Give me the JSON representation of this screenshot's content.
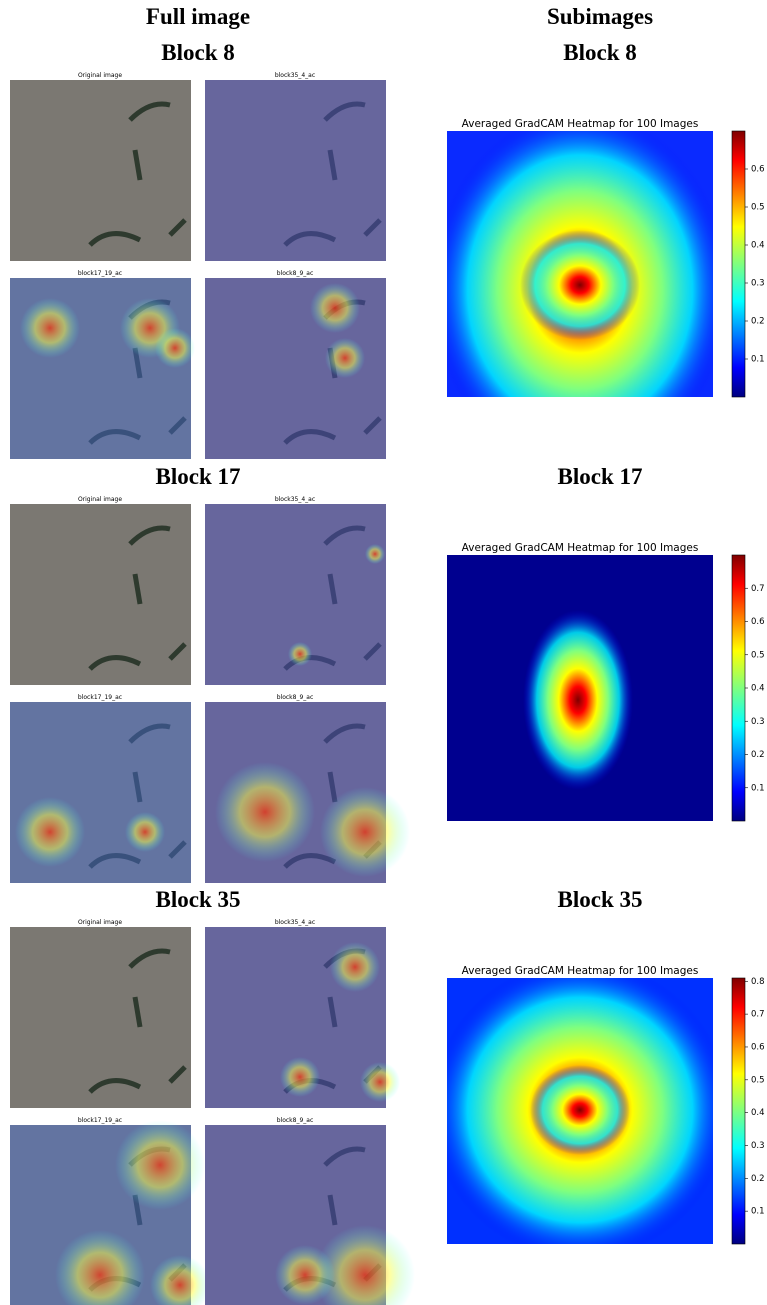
{
  "columns": [
    "Full image",
    "Subimages"
  ],
  "blocks": [
    {
      "title": "Block 8",
      "panels": [
        "Original image",
        "block35_4_ac",
        "block17_19_ac",
        "block8_9_ac"
      ],
      "heatmap": {
        "title": "Averaged GradCAM Heatmap for 100 Images",
        "clim": [
          0,
          0.7
        ],
        "ticks": [
          0.1,
          0.2,
          0.3,
          0.4,
          0.5,
          0.6
        ]
      }
    },
    {
      "title": "Block 17",
      "panels": [
        "Original image",
        "block35_4_ac",
        "block17_19_ac",
        "block8_9_ac"
      ],
      "heatmap": {
        "title": "Averaged GradCAM Heatmap for 100 Images",
        "clim": [
          0,
          0.8
        ],
        "ticks": [
          0.1,
          0.2,
          0.3,
          0.4,
          0.5,
          0.6,
          0.7
        ]
      }
    },
    {
      "title": "Block 35",
      "panels": [
        "Original image",
        "block35_4_ac",
        "block17_19_ac",
        "block8_9_ac"
      ],
      "heatmap": {
        "title": "Averaged GradCAM Heatmap for 100 Images",
        "clim": [
          0,
          0.81
        ],
        "ticks": [
          0.1,
          0.2,
          0.3,
          0.4,
          0.5,
          0.6,
          0.7,
          0.8
        ]
      }
    }
  ]
}
